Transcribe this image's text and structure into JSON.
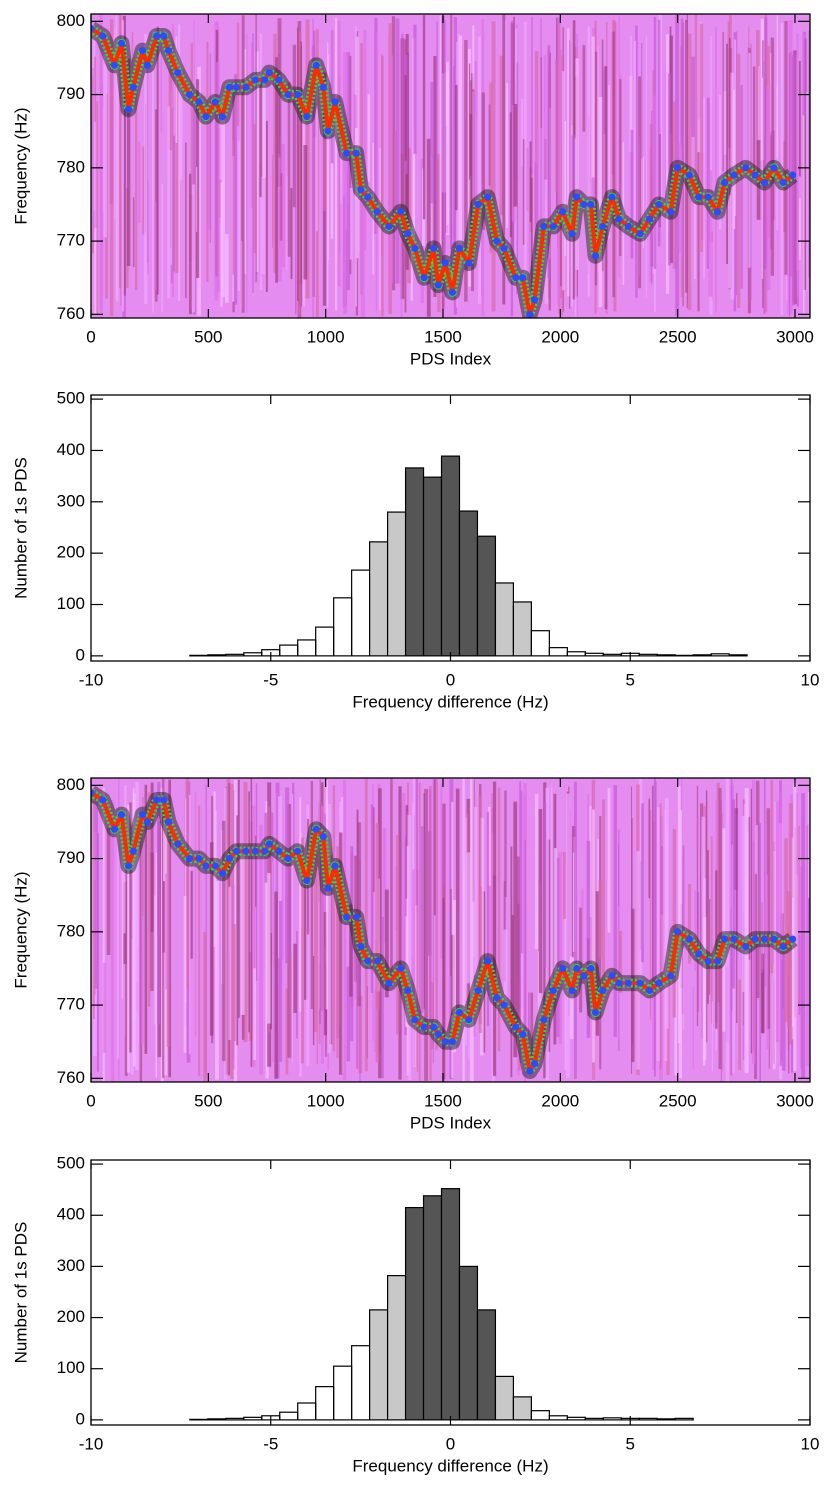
{
  "chart_data": [
    {
      "type": "scatter",
      "xlabel": "PDS Index",
      "ylabel": "Frequency (Hz)",
      "x": [
        0,
        50,
        100,
        130,
        160,
        180,
        220,
        240,
        280,
        310,
        330,
        370,
        420,
        460,
        490,
        530,
        560,
        590,
        620,
        660,
        700,
        740,
        760,
        800,
        840,
        880,
        920,
        960,
        990,
        1010,
        1040,
        1090,
        1130,
        1150,
        1180,
        1220,
        1270,
        1320,
        1350,
        1380,
        1420,
        1460,
        1480,
        1510,
        1540,
        1570,
        1610,
        1650,
        1690,
        1730,
        1760,
        1810,
        1840,
        1870,
        1890,
        1930,
        1970,
        2010,
        2050,
        2070,
        2100,
        2130,
        2150,
        2180,
        2220,
        2250,
        2290,
        2340,
        2380,
        2420,
        2470,
        2500,
        2550,
        2590,
        2630,
        2670,
        2700,
        2740,
        2790,
        2830,
        2870,
        2910,
        2950,
        2990
      ],
      "values": [
        799,
        798,
        794,
        797,
        788,
        791,
        796,
        794,
        798,
        798,
        796,
        793,
        790,
        789,
        787,
        789,
        787,
        791,
        791,
        791,
        792,
        792,
        793,
        792,
        790,
        790,
        787,
        794,
        791,
        785,
        789,
        782,
        782,
        777,
        776,
        774,
        772,
        774,
        771,
        769,
        765,
        769,
        764,
        767,
        763,
        769,
        767,
        775,
        776,
        770,
        769,
        765,
        765,
        760,
        762,
        772,
        772,
        774,
        771,
        776,
        775,
        775,
        768,
        772,
        776,
        773,
        772,
        771,
        773,
        775,
        774,
        780,
        779,
        776,
        776,
        774,
        778,
        779,
        780,
        779,
        778,
        780,
        778,
        779
      ],
      "color": "#2a4cff",
      "line_color": "#ff2a00",
      "xlim": [
        0,
        3064
      ],
      "ylim": [
        759.5,
        801
      ],
      "xticks": [
        0,
        500,
        1000,
        1500,
        2000,
        2500,
        3000
      ],
      "yticks": [
        760,
        770,
        780,
        790,
        800
      ]
    },
    {
      "type": "histogram",
      "xlabel": "Frequency difference (Hz)",
      "ylabel": "Number of 1s PDS",
      "bins": [
        -9.75,
        -9.25,
        -8.75,
        -8.25,
        -7.75,
        -7.25,
        -6.75,
        -6.25,
        -5.75,
        -5.25,
        -4.75,
        -4.25,
        -3.75,
        -3.25,
        -2.75,
        -2.25,
        -1.75,
        -1.25,
        -0.75,
        -0.25,
        0.25,
        0.75,
        1.25,
        1.75,
        2.25,
        2.75,
        3.25,
        3.75,
        4.25,
        4.75,
        5.25,
        5.75,
        6.25,
        6.75,
        7.25,
        7.75,
        8.25,
        8.75,
        9.25,
        9.75
      ],
      "values": [
        0,
        0,
        0,
        0,
        0,
        1,
        2,
        3,
        6,
        12,
        21,
        31,
        56,
        113,
        167,
        222,
        280,
        366,
        348,
        389,
        282,
        233,
        142,
        105,
        49,
        16,
        8,
        5,
        3,
        5,
        3,
        2,
        1,
        2,
        4,
        2,
        0,
        0,
        0
      ],
      "fill_ranges": [
        {
          "range": [
            -2.25,
            2.25
          ],
          "color": "#c8c8c8"
        },
        {
          "range": [
            -1.25,
            1.25
          ],
          "color": "#555555"
        }
      ],
      "xlim": [
        -10,
        10
      ],
      "ylim": [
        -10,
        508
      ],
      "xticks": [
        -10,
        -5,
        0,
        5,
        10
      ],
      "yticks": [
        0,
        100,
        200,
        300,
        400,
        500
      ]
    },
    {
      "type": "scatter",
      "xlabel": "PDS Index",
      "ylabel": "Frequency (Hz)",
      "x": [
        0,
        50,
        100,
        130,
        160,
        180,
        220,
        240,
        280,
        310,
        330,
        370,
        420,
        460,
        490,
        530,
        560,
        590,
        620,
        660,
        700,
        740,
        760,
        800,
        840,
        880,
        920,
        960,
        990,
        1010,
        1040,
        1090,
        1130,
        1150,
        1180,
        1220,
        1270,
        1320,
        1350,
        1380,
        1420,
        1460,
        1480,
        1510,
        1540,
        1570,
        1610,
        1650,
        1690,
        1730,
        1760,
        1810,
        1840,
        1870,
        1890,
        1930,
        1970,
        2010,
        2050,
        2070,
        2100,
        2130,
        2150,
        2180,
        2220,
        2250,
        2290,
        2340,
        2380,
        2420,
        2470,
        2500,
        2550,
        2590,
        2630,
        2670,
        2700,
        2740,
        2790,
        2830,
        2870,
        2910,
        2950,
        2990
      ],
      "values": [
        799,
        798,
        794,
        796,
        789,
        791,
        796,
        795,
        798,
        798,
        795,
        792,
        790,
        790,
        789,
        789,
        788,
        790,
        791,
        791,
        791,
        791,
        792,
        791,
        790,
        791,
        787,
        794,
        793,
        786,
        789,
        782,
        782,
        778,
        776,
        776,
        773,
        775,
        772,
        768,
        767,
        767,
        766,
        765,
        765,
        769,
        768,
        772,
        776,
        771,
        770,
        767,
        766,
        761,
        762,
        768,
        772,
        775,
        772,
        775,
        774,
        775,
        769,
        772,
        774,
        773,
        773,
        773,
        772,
        773,
        774,
        780,
        779,
        777,
        776,
        776,
        779,
        779,
        778,
        779,
        779,
        779,
        778,
        779
      ],
      "color": "#2a4cff",
      "line_color": "#ff2a00",
      "xlim": [
        0,
        3064
      ],
      "ylim": [
        759.5,
        801
      ],
      "xticks": [
        0,
        500,
        1000,
        1500,
        2000,
        2500,
        3000
      ],
      "yticks": [
        760,
        770,
        780,
        790,
        800
      ]
    },
    {
      "type": "histogram",
      "xlabel": "Frequency difference (Hz)",
      "ylabel": "Number of 1s PDS",
      "bins": [
        -9.75,
        -9.25,
        -8.75,
        -8.25,
        -7.75,
        -7.25,
        -6.75,
        -6.25,
        -5.75,
        -5.25,
        -4.75,
        -4.25,
        -3.75,
        -3.25,
        -2.75,
        -2.25,
        -1.75,
        -1.25,
        -0.75,
        -0.25,
        0.25,
        0.75,
        1.25,
        1.75,
        2.25,
        2.75,
        3.25,
        3.75,
        4.25,
        4.75,
        5.25,
        5.75,
        6.25,
        6.75,
        7.25,
        7.75,
        8.25,
        8.75,
        9.25,
        9.75
      ],
      "values": [
        0,
        0,
        0,
        0,
        0,
        1,
        2,
        3,
        5,
        8,
        15,
        33,
        65,
        105,
        145,
        215,
        282,
        415,
        438,
        452,
        300,
        215,
        85,
        45,
        18,
        8,
        5,
        3,
        4,
        3,
        3,
        2,
        3,
        0,
        0,
        0,
        0,
        0,
        0
      ],
      "fill_ranges": [
        {
          "range": [
            -2.25,
            2.25
          ],
          "color": "#c8c8c8"
        },
        {
          "range": [
            -1.25,
            1.25
          ],
          "color": "#555555"
        }
      ],
      "xlim": [
        -10,
        10
      ],
      "ylim": [
        -10,
        508
      ],
      "xticks": [
        -10,
        -5,
        0,
        5,
        10
      ],
      "yticks": [
        0,
        100,
        200,
        300,
        400,
        500
      ]
    }
  ]
}
